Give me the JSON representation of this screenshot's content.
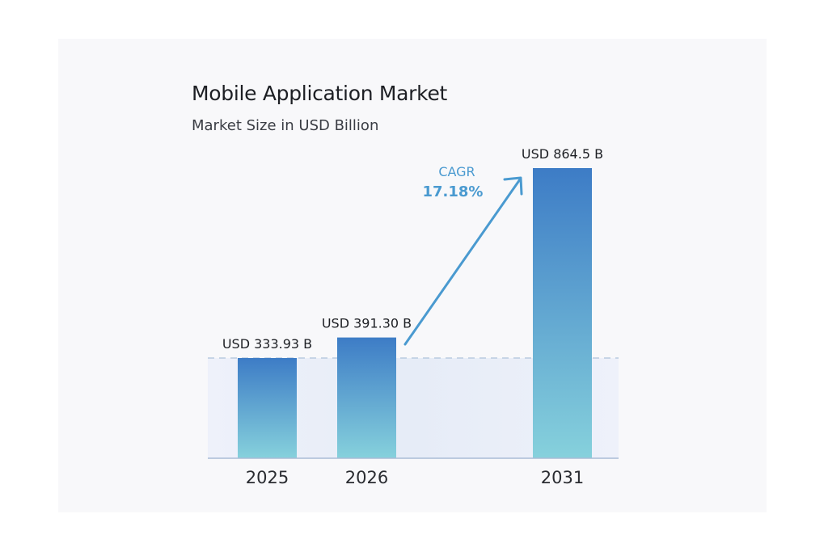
{
  "chart_data": {
    "type": "bar",
    "title": "Mobile Application Market",
    "subtitle": "Market Size in USD Billion",
    "categories": [
      "2025",
      "2026",
      "2031"
    ],
    "values": [
      333.93,
      391.3,
      864.5
    ],
    "data_labels": [
      "USD 333.93 B",
      "USD 391.30 B",
      "USD 864.5 B"
    ],
    "annotation": {
      "label": "CAGR",
      "value": "17.18%"
    },
    "xlabel": "",
    "ylabel": "",
    "grid": false,
    "colors": {
      "bar_top": "#3d7cc6",
      "bar_bottom": "#86d1dc",
      "annotation": "#4a9ad0",
      "band": "#e6ecf7"
    }
  }
}
